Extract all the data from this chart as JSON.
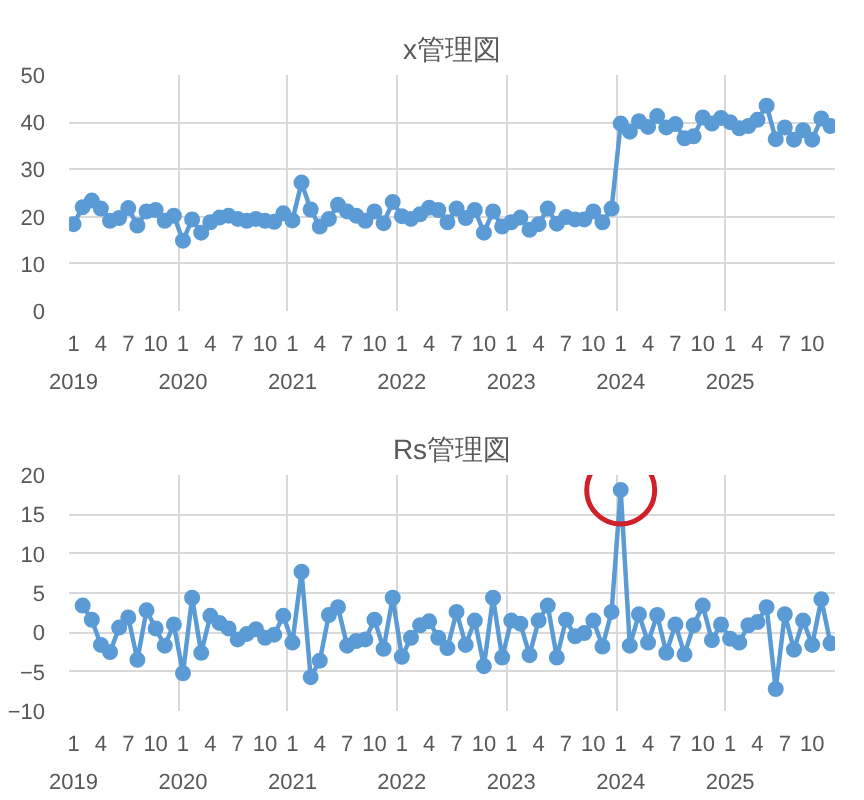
{
  "chart_data": [
    {
      "type": "line",
      "title": "x管理図",
      "categories": [
        "1\n2019",
        null,
        null,
        "4",
        null,
        null,
        "7",
        null,
        null,
        "10",
        null,
        null,
        "1\n2020",
        null,
        null,
        "4",
        null,
        null,
        "7",
        null,
        null,
        "10",
        null,
        null,
        "1\n2021",
        null,
        null,
        "4",
        null,
        null,
        "7",
        null,
        null,
        "10",
        null,
        null,
        "1\n2022",
        null,
        null,
        "4",
        null,
        null,
        "7",
        null,
        null,
        "10",
        null,
        null,
        "1\n2023",
        null,
        null,
        "4",
        null,
        null,
        "7",
        null,
        null,
        "10",
        null,
        null,
        "1\n2024",
        null,
        null,
        "4",
        null,
        null,
        "7",
        null,
        null,
        "10",
        null,
        null,
        "1\n2025",
        null,
        null,
        "4",
        null,
        null,
        "7",
        null,
        null,
        "10",
        null,
        null
      ],
      "ylim": [
        0,
        50
      ],
      "yticks": [
        0,
        10,
        20,
        30,
        40,
        50
      ],
      "grid": true,
      "marker": "circle",
      "series": [
        {
          "color": "#5b9bd5",
          "values": [
            18.4,
            22.0,
            23.4,
            21.7,
            19.1,
            19.7,
            21.8,
            18.1,
            21.1,
            21.4,
            19.1,
            20.2,
            14.9,
            19.4,
            16.6,
            18.8,
            19.8,
            20.2,
            19.5,
            19.1,
            19.5,
            19.1,
            18.9,
            20.7,
            19.2,
            27.2,
            21.5,
            17.9,
            19.5,
            22.5,
            21.1,
            20.2,
            19.1,
            21.1,
            18.6,
            23.1,
            20.1,
            19.5,
            20.5,
            21.9,
            21.4,
            18.8,
            21.7,
            19.7,
            21.4,
            16.6,
            21.1,
            17.9,
            18.8,
            19.8,
            17.2,
            18.4,
            21.7,
            18.5,
            19.9,
            19.4,
            19.4,
            21.1,
            18.8,
            21.7,
            39.7,
            38.0,
            40.2,
            39.0,
            41.3,
            38.9,
            39.6,
            36.6,
            37.0,
            41.0,
            39.7,
            40.9,
            40.0,
            38.7,
            39.2,
            40.5,
            43.5,
            36.4,
            38.9,
            36.3,
            38.3,
            36.3,
            40.8,
            39.2
          ]
        }
      ]
    },
    {
      "type": "line",
      "title": "Rs管理図",
      "categories": [
        "1\n2019",
        null,
        null,
        "4",
        null,
        null,
        "7",
        null,
        null,
        "10",
        null,
        null,
        "1\n2020",
        null,
        null,
        "4",
        null,
        null,
        "7",
        null,
        null,
        "10",
        null,
        null,
        "1\n2021",
        null,
        null,
        "4",
        null,
        null,
        "7",
        null,
        null,
        "10",
        null,
        null,
        "1\n2022",
        null,
        null,
        "4",
        null,
        null,
        "7",
        null,
        null,
        "10",
        null,
        null,
        "1\n2023",
        null,
        null,
        "4",
        null,
        null,
        "7",
        null,
        null,
        "10",
        null,
        null,
        "1\n2024",
        null,
        null,
        "4",
        null,
        null,
        "7",
        null,
        null,
        "10",
        null,
        null,
        "1\n2025",
        null,
        null,
        "4",
        null,
        null,
        "7",
        null,
        null,
        "10",
        null,
        null
      ],
      "ylim": [
        -10,
        20
      ],
      "yticks": [
        -10,
        -5,
        0,
        5,
        10,
        15,
        20
      ],
      "grid": true,
      "marker": "circle",
      "series": [
        {
          "color": "#5b9bd5",
          "values": [
            null,
            3.4,
            1.6,
            -1.6,
            -2.5,
            0.6,
            1.9,
            -3.5,
            2.8,
            0.5,
            -1.7,
            1.0,
            -5.2,
            4.4,
            -2.6,
            2.1,
            1.2,
            0.5,
            -0.9,
            -0.2,
            0.4,
            -0.7,
            -0.3,
            2.1,
            -1.3,
            7.7,
            -5.7,
            -3.6,
            2.2,
            3.2,
            -1.7,
            -1.1,
            -0.9,
            1.6,
            -2.1,
            4.4,
            -3.1,
            -0.7,
            0.9,
            1.4,
            -0.7,
            -2.0,
            2.6,
            -1.6,
            1.5,
            -4.3,
            4.4,
            -3.2,
            1.5,
            1.1,
            -2.9,
            1.5,
            3.4,
            -3.2,
            1.6,
            -0.5,
            -0.1,
            1.5,
            -1.8,
            2.6,
            18.1,
            -1.7,
            2.3,
            -1.3,
            2.2,
            -2.6,
            1.0,
            -2.8,
            0.9,
            3.4,
            -1.0,
            1.0,
            -0.8,
            -1.3,
            0.9,
            1.3,
            3.2,
            -7.2,
            2.3,
            -2.2,
            1.5,
            -1.6,
            4.2,
            -1.4
          ]
        },
        {
          "type": "scatter",
          "color": "#d0202a",
          "marker": "circle",
          "values": [
            null,
            null,
            null,
            null,
            null,
            null,
            null,
            null,
            null,
            null,
            null,
            null,
            null,
            null,
            null,
            null,
            null,
            null,
            null,
            null,
            null,
            null,
            null,
            null,
            null,
            null,
            null,
            null,
            null,
            null,
            null,
            null,
            null,
            null,
            null,
            null,
            null,
            null,
            null,
            null,
            null,
            null,
            null,
            null,
            null,
            null,
            null,
            null,
            null,
            null,
            null,
            null,
            null,
            null,
            null,
            null,
            null,
            null,
            null,
            null,
            18.1,
            null,
            null,
            null,
            null,
            null,
            null,
            null,
            null,
            null,
            null,
            null,
            null,
            null,
            null,
            null,
            null,
            null,
            null,
            null,
            null,
            null,
            null,
            null
          ]
        }
      ]
    }
  ]
}
